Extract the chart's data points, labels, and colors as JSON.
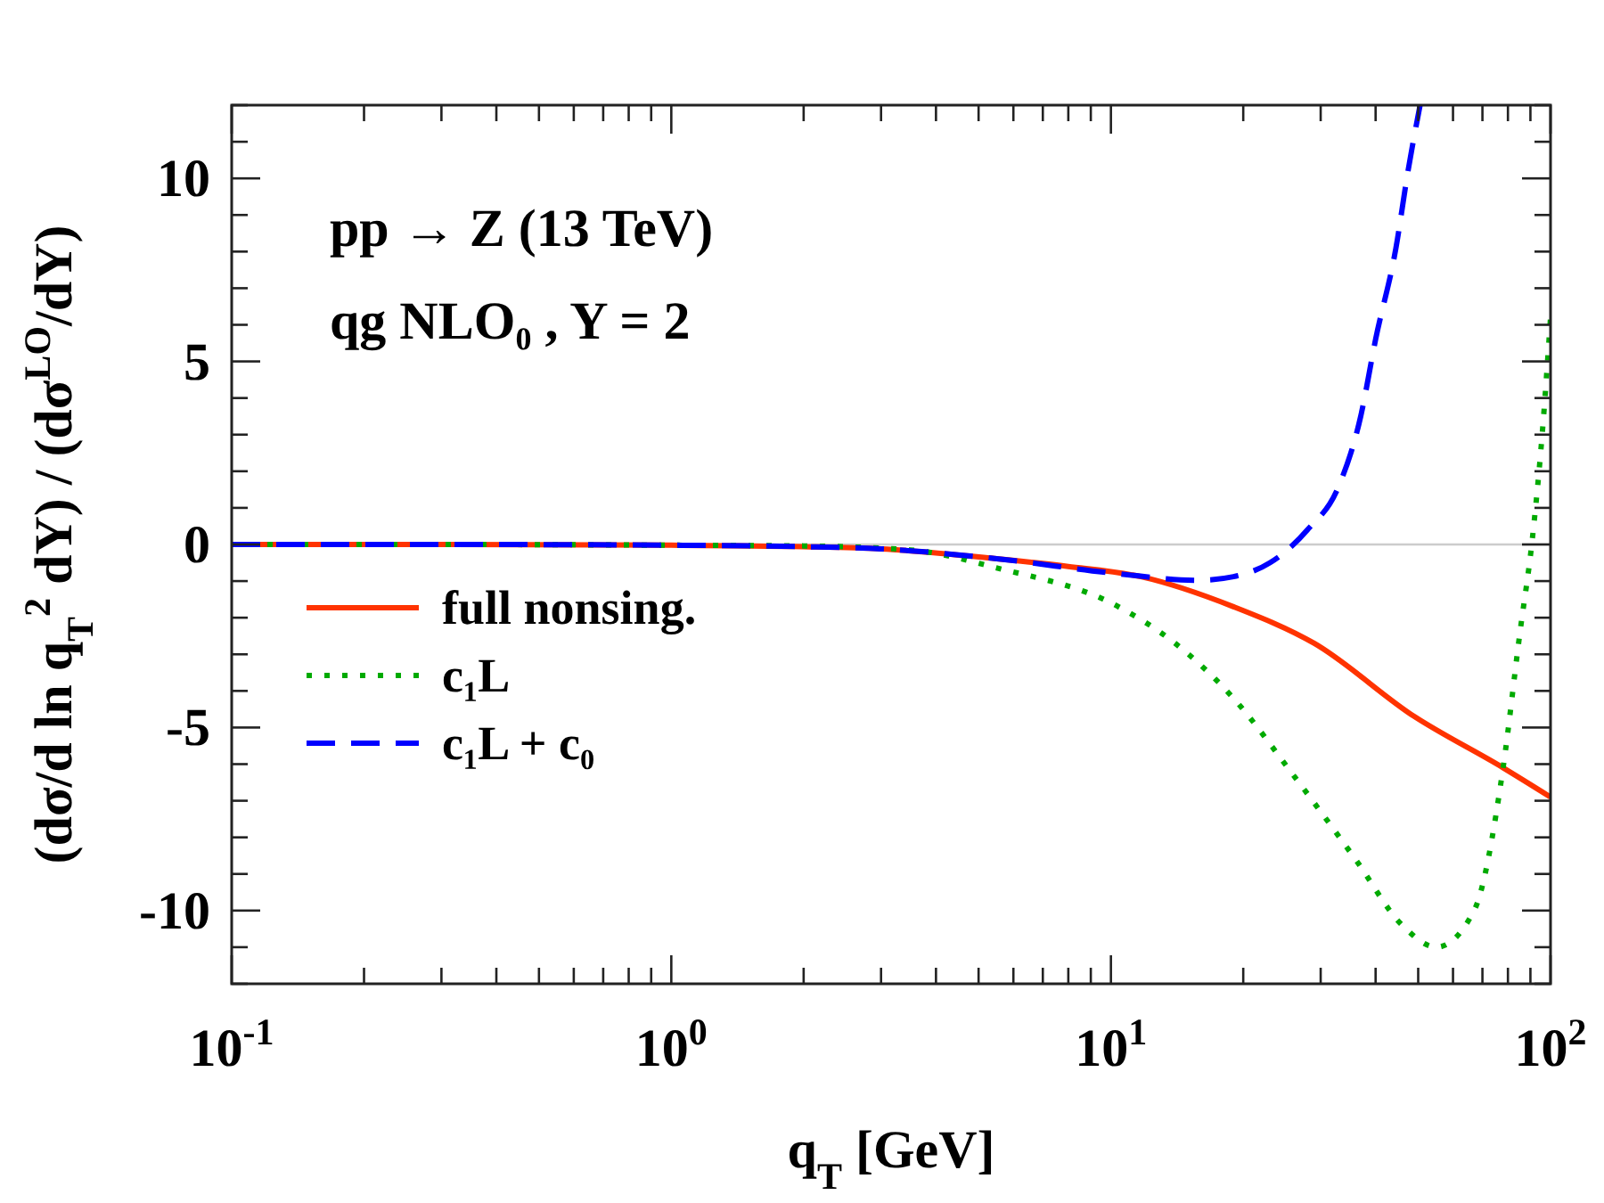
{
  "chart_data": {
    "type": "line",
    "xlabel": "q$_{T}$ [GeV]",
    "ylabel": "(dσ/d ln q$_{T}$$^{2}$ dY) / (dσ$^{LO}$/dY)",
    "annotations": [
      "pp → Z (13 TeV)",
      "qg NLO₀ , Y = 2"
    ],
    "log": "x",
    "xlim": [
      0.1,
      100
    ],
    "ylim": [
      -12,
      12
    ],
    "xticks": [
      {
        "value": 0.1,
        "label": "10$^{-1}$"
      },
      {
        "value": 0.2,
        "label": null
      },
      {
        "value": 0.3,
        "label": null
      },
      {
        "value": 0.4,
        "label": null
      },
      {
        "value": 0.5,
        "label": null
      },
      {
        "value": 0.6,
        "label": null
      },
      {
        "value": 0.7,
        "label": null
      },
      {
        "value": 0.8,
        "label": null
      },
      {
        "value": 0.9,
        "label": null
      },
      {
        "value": 1,
        "label": "10$^{0}$"
      },
      {
        "value": 2,
        "label": null
      },
      {
        "value": 3,
        "label": null
      },
      {
        "value": 4,
        "label": null
      },
      {
        "value": 5,
        "label": null
      },
      {
        "value": 6,
        "label": null
      },
      {
        "value": 7,
        "label": null
      },
      {
        "value": 8,
        "label": null
      },
      {
        "value": 9,
        "label": null
      },
      {
        "value": 10,
        "label": "10$^{1}$"
      },
      {
        "value": 20,
        "label": null
      },
      {
        "value": 30,
        "label": null
      },
      {
        "value": 40,
        "label": null
      },
      {
        "value": 50,
        "label": null
      },
      {
        "value": 60,
        "label": null
      },
      {
        "value": 70,
        "label": null
      },
      {
        "value": 80,
        "label": null
      },
      {
        "value": 90,
        "label": null
      },
      {
        "value": 100,
        "label": "10$^{2}$"
      }
    ],
    "yticks": [
      {
        "value": -12,
        "label": null
      },
      {
        "value": -11,
        "label": null
      },
      {
        "value": -10,
        "label": "-10"
      },
      {
        "value": -9,
        "label": null
      },
      {
        "value": -8,
        "label": null
      },
      {
        "value": -7,
        "label": null
      },
      {
        "value": -6,
        "label": null
      },
      {
        "value": -5,
        "label": "-5"
      },
      {
        "value": -4,
        "label": null
      },
      {
        "value": -3,
        "label": null
      },
      {
        "value": -2,
        "label": null
      },
      {
        "value": -1,
        "label": null
      },
      0,
      {
        "value": 1,
        "label": null
      },
      {
        "value": 2,
        "label": null
      },
      {
        "value": 3,
        "label": null
      },
      {
        "value": 4,
        "label": null
      },
      5,
      {
        "value": 6,
        "label": null
      },
      {
        "value": 7,
        "label": null
      },
      {
        "value": 8,
        "label": null
      },
      {
        "value": 9,
        "label": null
      },
      10,
      {
        "value": 11,
        "label": null
      },
      {
        "value": 12,
        "label": null
      }
    ],
    "ref_lines": [
      {
        "axis": "y",
        "value": 0,
        "color": "#cccccc"
      }
    ],
    "legend": "left",
    "grid": false,
    "series": [
      {
        "name": "full nonsing.",
        "color": "#ff3300",
        "line_style": "solid",
        "x": [
          0.1,
          0.3,
          1,
          2,
          3,
          5.5,
          8,
          11.7,
          19,
          29,
          49,
          78,
          100
        ],
        "values": [
          0,
          0,
          -0.02,
          -0.06,
          -0.12,
          -0.39,
          -0.6,
          -0.88,
          -1.7,
          -2.7,
          -4.7,
          -6.1,
          -6.9
        ]
      },
      {
        "name": "c₁L",
        "color": "#00aa00",
        "line_style": "dotted",
        "x": [
          0.1,
          0.3,
          1,
          2,
          3.5,
          5.5,
          10.4,
          14,
          19,
          26,
          36,
          46,
          55,
          67,
          78,
          85,
          91,
          96,
          100
        ],
        "values": [
          0,
          0,
          -0.02,
          -0.04,
          -0.15,
          -0.64,
          -1.7,
          -2.7,
          -4.2,
          -6.3,
          -8.6,
          -10.4,
          -11,
          -10,
          -6.1,
          -2.5,
          0.2,
          3.2,
          6.2
        ]
      },
      {
        "name": "c₁L + c₀",
        "color": "#0000ff",
        "line_style": "dashed",
        "x": [
          0.1,
          0.3,
          1,
          2,
          3,
          5.5,
          10.4,
          15.8,
          19,
          23,
          28,
          33,
          37,
          40,
          44.5,
          47.4,
          50.5
        ],
        "values": [
          0,
          0,
          -0.02,
          -0.06,
          -0.12,
          -0.39,
          -0.8,
          -0.98,
          -0.88,
          -0.5,
          0.4,
          1.6,
          3.5,
          5.6,
          8.1,
          10.2,
          12
        ]
      }
    ]
  }
}
